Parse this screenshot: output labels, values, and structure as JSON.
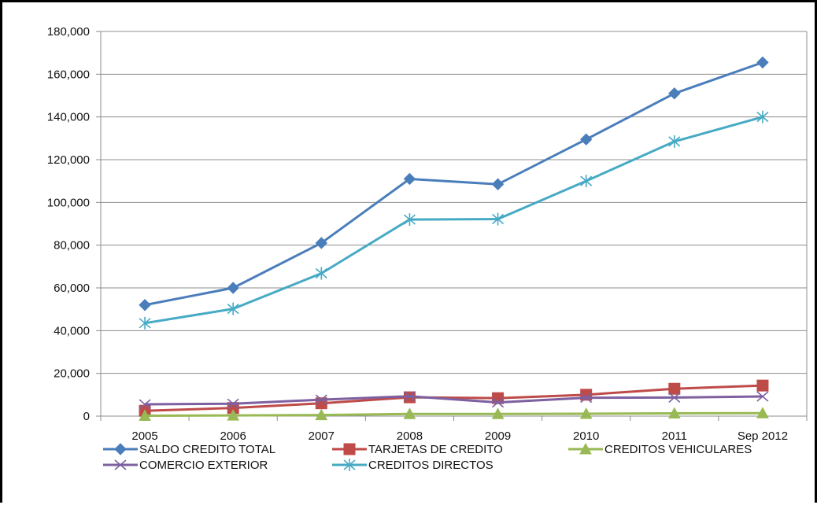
{
  "chart_data": {
    "type": "line",
    "categories": [
      "2005",
      "2006",
      "2007",
      "2008",
      "2009",
      "2010",
      "2011",
      "Sep 2012"
    ],
    "ylim": [
      0,
      180000
    ],
    "yticks": [
      0,
      20000,
      40000,
      60000,
      80000,
      100000,
      120000,
      140000,
      160000,
      180000
    ],
    "ytick_labels": [
      "0",
      "20,000",
      "40,000",
      "60,000",
      "80,000",
      "100,000",
      "120,000",
      "140,000",
      "160,000",
      "180,000"
    ],
    "grid": true,
    "legend_position": "bottom",
    "series": [
      {
        "name": "SALDO CREDITO TOTAL",
        "marker": "diamond",
        "color": "#4a7ebb",
        "values": [
          52000,
          60000,
          81000,
          111000,
          108500,
          129500,
          151000,
          165500
        ]
      },
      {
        "name": "TARJETAS DE CREDITO",
        "marker": "square",
        "color": "#be4b48",
        "values": [
          2500,
          3800,
          6000,
          8800,
          8400,
          10000,
          12800,
          14300
        ]
      },
      {
        "name": "CREDITOS VEHICULARES",
        "marker": "triangle",
        "color": "#98b954",
        "values": [
          200,
          300,
          500,
          1000,
          1000,
          1100,
          1300,
          1400
        ]
      },
      {
        "name": "COMERCIO EXTERIOR",
        "marker": "x",
        "color": "#7d60a0",
        "values": [
          5500,
          5800,
          7700,
          9300,
          6400,
          8600,
          8700,
          9200
        ]
      },
      {
        "name": "CREDITOS DIRECTOS",
        "marker": "asterisk",
        "color": "#46aac5",
        "values": [
          43500,
          50200,
          66800,
          92000,
          92200,
          110000,
          128500,
          140000
        ]
      }
    ]
  }
}
